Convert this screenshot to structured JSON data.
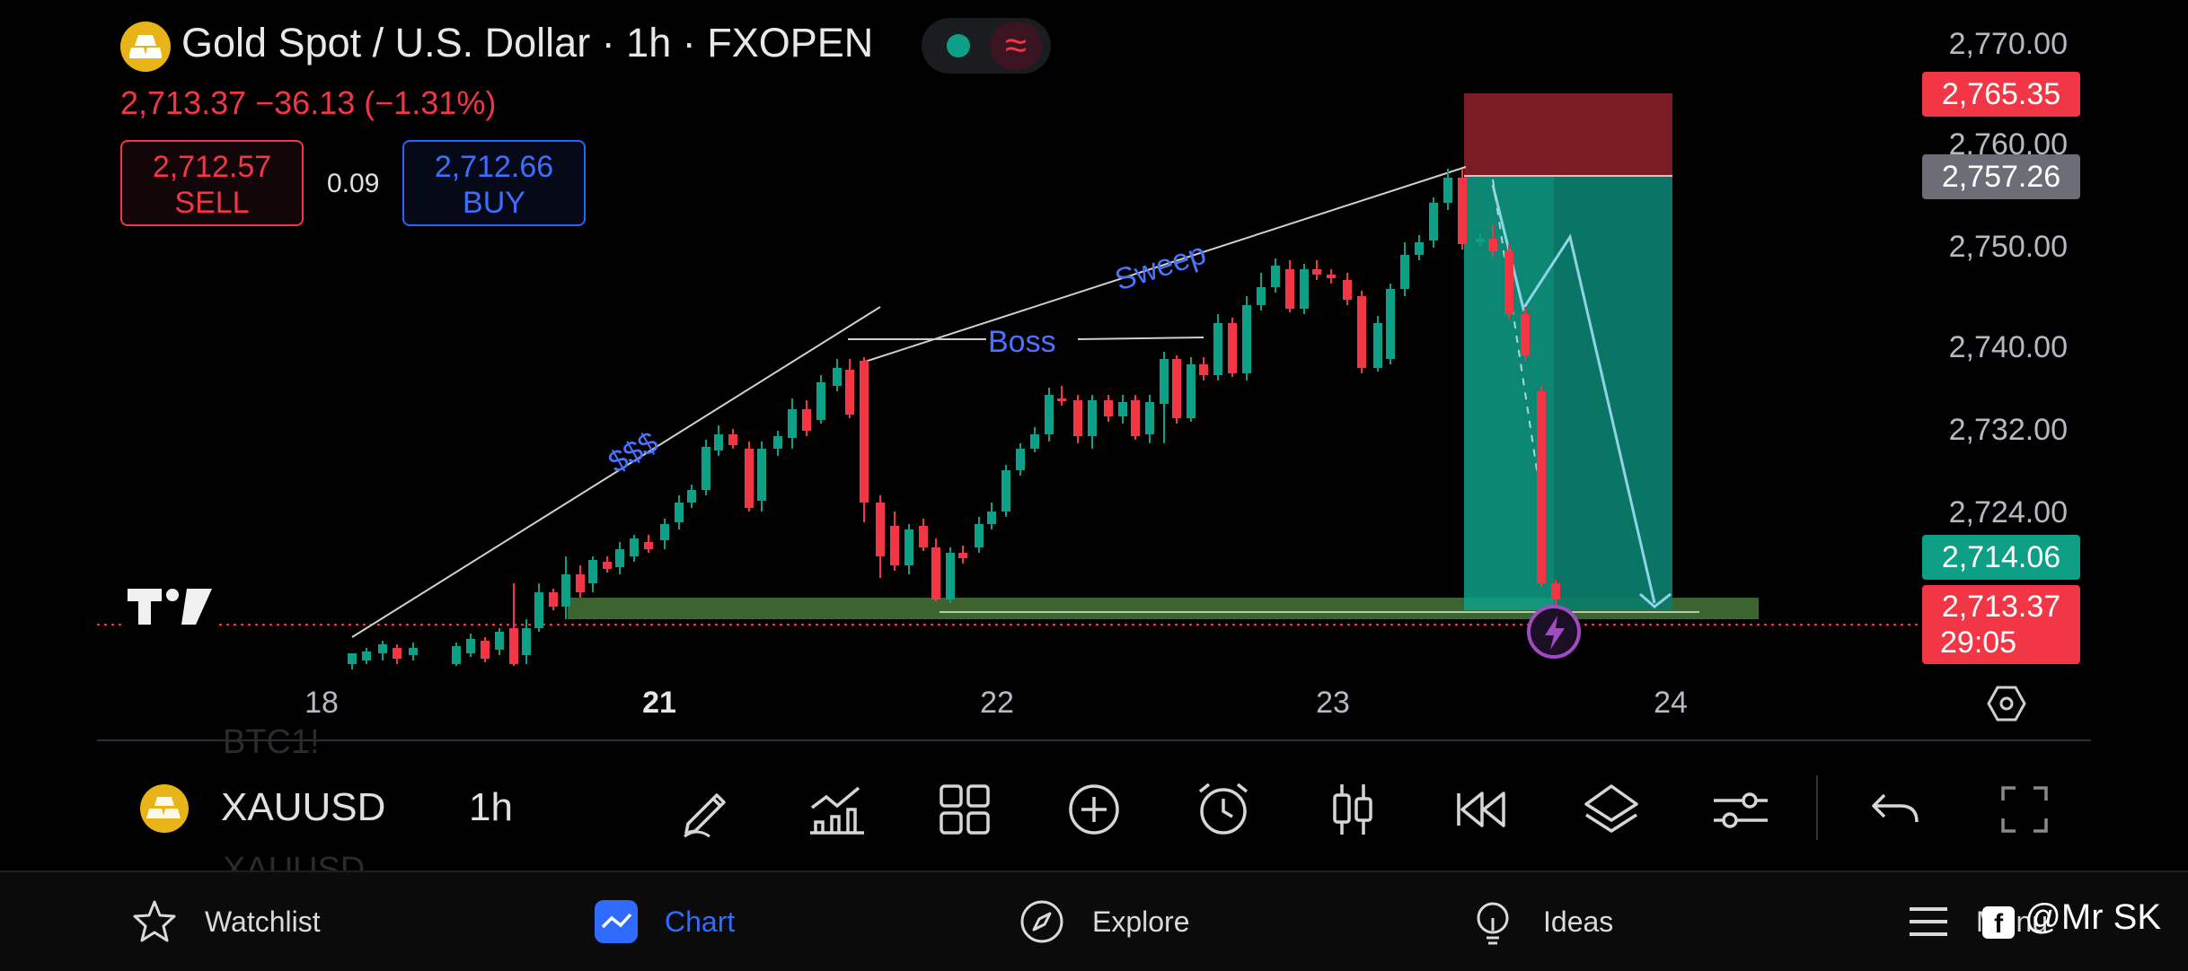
{
  "header": {
    "title": "Gold Spot / U.S. Dollar · 1h · FXOPEN",
    "price_change": "2,713.37  −36.13 (−1.31%)",
    "status_wave": "≈"
  },
  "trade": {
    "sell_price": "2,712.57",
    "sell_label": "SELL",
    "spread": "0.09",
    "buy_price": "2,712.66",
    "buy_label": "BUY"
  },
  "price_axis": {
    "labels": [
      "2,770.00",
      "2,760.00",
      "2,750.00",
      "2,740.00",
      "2,732.00",
      "2,724.00"
    ],
    "tag_top": "2,765.35",
    "tag_entry": "2,757.26",
    "tag_green": "2,714.06",
    "tag_current": "2,713.37",
    "tag_countdown": "29:05"
  },
  "time_axis": {
    "labels": [
      "18",
      "21",
      "22",
      "23",
      "24"
    ]
  },
  "annotations": {
    "sss": "$$$",
    "boss": "Boss",
    "sweep": "Sweep"
  },
  "toolbar": {
    "ghost_top": "BTC1!",
    "ghost_bottom": "XAUUSD",
    "symbol": "XAUUSD",
    "timeframe": "1h",
    "tools": [
      "pencil-icon",
      "indicators-icon",
      "grid-icon",
      "plus-circle-icon",
      "alarm-icon",
      "candles-icon",
      "rewind-icon",
      "layers-icon",
      "sliders-icon"
    ]
  },
  "nav": {
    "watchlist": "Watchlist",
    "chart": "Chart",
    "explore": "Explore",
    "ideas": "Ideas",
    "menu": "Menu"
  },
  "watermark": "@Mr SK",
  "colors": {
    "up": "#0e9f87",
    "down": "#f23645",
    "accent": "#2962ff",
    "gold": "#e8b417",
    "stop_zone": "#7a1c24",
    "target_zone": "#0e9f87"
  }
}
